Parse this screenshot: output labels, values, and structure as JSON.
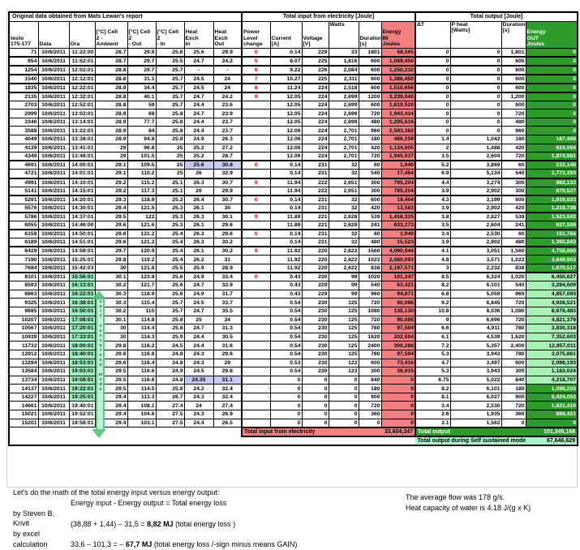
{
  "colors": {
    "input_red": "#f28080",
    "output_green": "#2d9c2d",
    "light_green": "#a9f0b4",
    "ora_green": "#9df2c0",
    "ss_band_green": "#abf3cb",
    "blue_highlight": "#c7cbf2",
    "power_red": "#e60000",
    "arrow_green": "#58c17e",
    "arrow_fill": "#bdf2d2",
    "arrow_text": "#0d6b30"
  },
  "table": {
    "section_headers": {
      "original": "Original data obtained from Mats Lewan's report",
      "input": "Total input from electricity  [Joule]",
      "output": "Total output  [Joule]"
    },
    "columns": [
      "testo\n175-177",
      "Data",
      "Ora",
      "[°C] Cell\n2 -\nAmbient",
      "[°C] Cell 2\n- Out",
      "[°C] Cell\n2\n- In",
      "Heat\nExch\nIn",
      "Heat\nExch\nOut",
      "Power\nLevel\nchange",
      "Current\n[A]",
      "Voltage\n[V]",
      "Watts",
      "Duration\n[s]",
      "Energy\nIN\nJoules",
      "ΔT",
      "P heat\n[Watts]",
      "Duration\n[s]",
      "Energy\nOUT\nJoules"
    ],
    "rows": [
      [
        "71",
        "10/6/2011",
        "11:22:00",
        "28.7",
        "29.9",
        "25.6",
        "25.6",
        "29.9",
        "0",
        "0.14",
        "229",
        "33",
        "1801",
        "58,565",
        "0",
        "0",
        "1,801",
        "0"
      ],
      [
        "954",
        "10/6/2011",
        "11:52:01",
        "28.7",
        "29.7",
        "25.5",
        "24.7",
        "24.2",
        "5",
        "8.07",
        "225",
        "1,816",
        "600",
        "1,089,450",
        "0",
        "0",
        "600",
        "0"
      ],
      [
        "1254",
        "10/6/2011",
        "12:02:01",
        "28.8",
        "29.7",
        "25.7",
        "-",
        "-",
        "6",
        "9.22",
        "226",
        "2,084",
        "600",
        "1,250,232",
        "0",
        "0",
        "600",
        "0"
      ],
      [
        "1540",
        "10/6/2011",
        "12:12:01",
        "28.8",
        "31.1",
        "25.7",
        "24.5",
        "24",
        "7",
        "10.27",
        "225",
        "2,311",
        "600",
        "1,386,450",
        "0",
        "0",
        "600",
        "0"
      ],
      [
        "1835",
        "10/6/2011",
        "12:22:01",
        "28.9",
        "34.4",
        "25.7",
        "24.5",
        "24",
        "8",
        "11.24",
        "224",
        "2,518",
        "600",
        "1,510,656",
        "0",
        "0",
        "600",
        "0"
      ],
      [
        "2135",
        "10/6/2011",
        "12:32:01",
        "28.8",
        "40.1",
        "25.7",
        "24.7",
        "24.2",
        "9",
        "12.05",
        "224",
        "2,699",
        "1200",
        "3,239,040",
        "0",
        "0",
        "1,200",
        "0"
      ],
      [
        "2703",
        "10/6/2011",
        "12:52:01",
        "28.8",
        "59",
        "25.7",
        "24.4",
        "23.6",
        "",
        "12.05",
        "224",
        "2,699",
        "600",
        "1,619,520",
        "0",
        "0",
        "600",
        "0"
      ],
      [
        "2999",
        "10/6/2011",
        "13:02:01",
        "28.9",
        "68",
        "25.8",
        "24.7",
        "23.9",
        "",
        "12.05",
        "224",
        "2,699",
        "720",
        "1,943,424",
        "0",
        "0",
        "720",
        "0"
      ],
      [
        "3346",
        "10/6/2011",
        "13:14:01",
        "28.9",
        "77.7",
        "25.8",
        "24.4",
        "23.7",
        "",
        "12.05",
        "224",
        "2,699",
        "480",
        "1,295,616",
        "0",
        "0",
        "480",
        "0"
      ],
      [
        "3588",
        "10/6/2011",
        "13:22:01",
        "28.9",
        "84",
        "25.8",
        "24.4",
        "23.7",
        "",
        "12.06",
        "224",
        "2,701",
        "960",
        "2,593,382",
        "0",
        "0",
        "960",
        "0"
      ],
      [
        "4049",
        "10/6/2011",
        "13:38:01",
        "28.9",
        "94.8",
        "25.8",
        "24.9",
        "26.3",
        "",
        "12.06",
        "224",
        "2,701",
        "180",
        "486,259",
        "1.4",
        "1,042",
        "180",
        "187,498"
      ],
      [
        "4139",
        "10/6/2011",
        "13:41:01",
        "29",
        "96.8",
        "25",
        "25.2",
        "27.2",
        "",
        "12.06",
        "224",
        "2,701",
        "420",
        "1,134,605",
        "2",
        "1,488",
        "420",
        "624,994"
      ],
      [
        "4349",
        "10/6/2011",
        "13:48:01",
        "29",
        "101.5",
        "25",
        "25.2",
        "28.7",
        "",
        "12.06",
        "224",
        "2,701",
        "720",
        "1,945,037",
        "3.5",
        "2,604",
        "720",
        "1,874,981"
      ],
      [
        "4691",
        "10/6/2011",
        "14:00:01",
        "29.1",
        "109.5",
        "25",
        "25.6",
        "30.8",
        "0",
        "0.14",
        "231",
        "32",
        "60",
        "1,940",
        "5.2",
        "3,869",
        "60",
        "232,140"
      ],
      [
        "4721",
        "10/6/2011",
        "14:01:01",
        "29.1",
        "110.2",
        "25",
        "26",
        "32.9",
        "",
        "0.14",
        "231",
        "32",
        "540",
        "17,464",
        "6.9",
        "5,134",
        "540",
        "2,772,293"
      ],
      [
        "4991",
        "10/6/2011",
        "14:10:01",
        "29.2",
        "115.2",
        "25.1",
        "26.3",
        "30.7",
        "9",
        "11.94",
        "222",
        "2,651",
        "300",
        "795,204",
        "4.4",
        "3,274",
        "300",
        "982,133"
      ],
      [
        "5141",
        "10/6/2011",
        "14:15:01",
        "29.2",
        "117.3",
        "25.1",
        "26",
        "29.9",
        "",
        "11.94",
        "222",
        "2,651",
        "300",
        "795,204",
        "3.9",
        "2,902",
        "300",
        "870,527"
      ],
      [
        "5291",
        "10/6/2011",
        "14:20:01",
        "29.3",
        "118.9",
        "25.2",
        "26.4",
        "30.7",
        "0",
        "0.14",
        "231",
        "32",
        "600",
        "19,404",
        "4.3",
        "3,199",
        "600",
        "1,919,623"
      ],
      [
        "5576",
        "10/6/2011",
        "14:30:01",
        "29.4",
        "121.5",
        "25.3",
        "26.1",
        "30",
        "",
        "0.14",
        "231",
        "32",
        "420",
        "13,583",
        "3.9",
        "2,902",
        "420",
        "1,218,738"
      ],
      [
        "5786",
        "10/6/2011",
        "14:37:01",
        "29.5",
        "122",
        "25.3",
        "26.3",
        "30.1",
        "9",
        "11.89",
        "221",
        "2,628",
        "539",
        "1,416,325",
        "3.8",
        "2,827",
        "539",
        "1,523,943"
      ],
      [
        "6055",
        "10/6/2011",
        "14:46:00",
        "29.6",
        "121.6",
        "25.3",
        "26.1",
        "29.6",
        "",
        "11.89",
        "221",
        "2,628",
        "241",
        "633,273",
        "3.5",
        "2,604",
        "241",
        "627,598"
      ],
      [
        "6159",
        "10/6/2011",
        "14:50:01",
        "29.6",
        "121.2",
        "25.4",
        "26.2",
        "29.6",
        "0",
        "0.14",
        "231",
        "32",
        "60",
        "1,940",
        "3.4",
        "2,530",
        "60",
        "151,784"
      ],
      [
        "6189",
        "10/6/2011",
        "14:51:01",
        "29.6",
        "121.2",
        "25.4",
        "26.3",
        "30.2",
        "",
        "0.14",
        "231",
        "32",
        "480",
        "15,523",
        "3.9",
        "2,902",
        "480",
        "1,392,843"
      ],
      [
        "6429",
        "10/6/2011",
        "14:59:01",
        "29.7",
        "120.9",
        "25.4",
        "26.1",
        "30.2",
        "9",
        "11.92",
        "220",
        "2,622",
        "1560",
        "4,090,944",
        "4.1",
        "3,051",
        "1,560",
        "4,758,880"
      ],
      [
        "7190",
        "10/6/2011",
        "15:25:01",
        "29.8",
        "119.2",
        "25.4",
        "26.2",
        "31",
        "",
        "11.92",
        "220",
        "2,622",
        "1022",
        "2,680,093",
        "4.8",
        "3,571",
        "1,022",
        "3,649,963"
      ],
      [
        "7684",
        "10/6/2011",
        "15:42:03",
        "30",
        "121.8",
        "25.5",
        "25.9",
        "28.9",
        "",
        "11.92",
        "220",
        "2,622",
        "838",
        "2,197,571",
        "3",
        "2,232",
        "838",
        "1,870,517"
      ],
      [
        "8101",
        "10/6/2011",
        "15:56:01",
        "30.1",
        "123.8",
        "25.6",
        "24.9",
        "33.4",
        "0",
        "0.43",
        "230",
        "99",
        "1020",
        "101,347",
        "8.5",
        "6,324",
        "1,020",
        "6,450,827"
      ],
      [
        "8593",
        "10/6/2011",
        "16:13:01",
        "30.2",
        "121.7",
        "25.6",
        "24.7",
        "32.9",
        "",
        "0.43",
        "229",
        "99",
        "540",
        "53,421",
        "8.2",
        "6,101",
        "540",
        "3,294,609"
      ],
      [
        "8863",
        "10/6/2011",
        "16:22:01",
        "30.3",
        "118.9",
        "25.6",
        "24.9",
        "31.7",
        "",
        "0.43",
        "229",
        "99",
        "960",
        "94,971",
        "6.8",
        "5,059",
        "960",
        "4,857,093"
      ],
      [
        "9325",
        "10/6/2011",
        "16:38:01",
        "30.3",
        "115.4",
        "25.7",
        "24.5",
        "33.7",
        "",
        "0.54",
        "230",
        "125",
        "720",
        "90,086",
        "9.2",
        "6,845",
        "720",
        "4,928,521"
      ],
      [
        "9685",
        "10/6/2011",
        "16:50:01",
        "30.2",
        "115",
        "25.7",
        "24.7",
        "35.5",
        "",
        "0.54",
        "230",
        "125",
        "1080",
        "135,130",
        "10.8",
        "8,036",
        "1,080",
        "8,678,483"
      ],
      [
        "10207",
        "10/6/2011",
        "17:08:01",
        "30.1",
        "114.8",
        "25.8",
        "25",
        "34",
        "",
        "0.54",
        "230",
        "125",
        "720",
        "90,086",
        "9",
        "6,696",
        "720",
        "4,821,379"
      ],
      [
        "10567",
        "10/6/2011",
        "17:20:01",
        "30",
        "114.4",
        "25.8",
        "24.7",
        "31.3",
        "",
        "0.54",
        "230",
        "125",
        "780",
        "97,594",
        "6.6",
        "4,911",
        "780",
        "3,830,318"
      ],
      [
        "10939",
        "10/6/2011",
        "17:33:01",
        "30",
        "114.3",
        "25.9",
        "24.4",
        "30.5",
        "",
        "0.54",
        "230",
        "125",
        "1620",
        "202,694",
        "6.1",
        "4,539",
        "1,620",
        "7,352,603"
      ],
      [
        "11732",
        "10/6/2011",
        "18:00:01",
        "29.8",
        "116.2",
        "24.5",
        "24.4",
        "31.6",
        "",
        "0.54",
        "230",
        "125",
        "2400",
        "300,288",
        "7.2",
        "5,357",
        "2,400",
        "12,857,011"
      ],
      [
        "12912",
        "10/6/2011",
        "18:40:01",
        "29.6",
        "116.8",
        "24.8",
        "24.3",
        "29.6",
        "",
        "0.54",
        "230",
        "125",
        "780",
        "97,594",
        "5.3",
        "3,943",
        "780",
        "3,075,861"
      ],
      [
        "13284",
        "10/6/2011",
        "18:53:01",
        "29.6",
        "116.4",
        "24.8",
        "24.3",
        "29",
        "",
        "0.53",
        "230",
        "122",
        "600",
        "73,416",
        "4.7",
        "3,497",
        "600",
        "2,098,193"
      ],
      [
        "13584",
        "10/6/2011",
        "19:03:01",
        "29.5",
        "116.6",
        "24.9",
        "24.5",
        "29.8",
        "",
        "0.54",
        "230",
        "123",
        "300",
        "36,915",
        "5.3",
        "3,943",
        "300",
        "1,183,024"
      ],
      [
        "13734",
        "10/6/2011",
        "19:08:01",
        "29.5",
        "116.6",
        "24.8",
        "24.35",
        "31.1",
        "",
        "0",
        "0",
        "0",
        "840",
        "0",
        "6.75",
        "5,022",
        "840",
        "4,218,707"
      ],
      [
        "14137",
        "10/6/2011",
        "19:22:01",
        "29.5",
        "114.5",
        "25.8",
        "24.2",
        "32.4",
        "",
        "0",
        "0",
        "0",
        "180",
        "0",
        "8.2",
        "6,101",
        "180",
        "1,098,203"
      ],
      [
        "14227",
        "10/6/2011",
        "19:25:01",
        "29.4",
        "113.3",
        "26.7",
        "24.3",
        "32.4",
        "",
        "0",
        "0",
        "0",
        "900",
        "0",
        "8.1",
        "6,027",
        "900",
        "5,424,052"
      ],
      [
        "14661",
        "10/6/2011",
        "19:40:01",
        "29.4",
        "108.1",
        "27.4",
        "24",
        "27.4",
        "",
        "0",
        "0",
        "0",
        "720",
        "0",
        "3.4",
        "2,530",
        "720",
        "1,821,410"
      ],
      [
        "15021",
        "10/6/2011",
        "19:52:01",
        "29.4",
        "104.6",
        "27.5",
        "24.3",
        "26.9",
        "",
        "0",
        "0",
        "0",
        "360",
        "0",
        "2.6",
        "1,935",
        "360",
        "696,421"
      ],
      [
        "15201",
        "10/6/2011",
        "19:58:01",
        "29.4",
        "103.1",
        "27.5",
        "24.4",
        "26.5",
        "",
        "0",
        "0",
        "0",
        "0",
        "0",
        "2.1",
        "1,562",
        "0",
        "0"
      ]
    ],
    "highlight": {
      "ora_green_rows": [
        27,
        28,
        29,
        30,
        31,
        32,
        33,
        34,
        35,
        36,
        37,
        38,
        39,
        40,
        41
      ],
      "hx_blue_rows": [
        14,
        39
      ],
      "eout_light_rows": [
        27,
        28,
        29,
        30,
        31,
        32,
        33,
        34,
        35,
        36,
        37,
        38,
        39
      ],
      "group_start_rows": [
        2,
        3,
        4,
        5,
        6,
        14,
        16,
        18,
        20,
        22,
        24,
        27
      ]
    },
    "totals": {
      "input_label": "Total input from electricity",
      "input_value": "33,604,247",
      "output_label": "Total output",
      "output_value": "101,345,168",
      "ss_label": "Total output during Self sustained mode",
      "ss_value": "67,646,629"
    }
  },
  "annotation": {
    "vertical_text": "self sustained mode"
  },
  "notes": {
    "math_intro": "Let's do the math of the total energy input versus energy output:",
    "formula": "Energy input - Energy output = Total energy loss",
    "krivit_label": "by Steven B. Krivit",
    "krivit_calc": "(38,88 + 1,44) – 31,5 = ",
    "krivit_bold": "8,82  MJ",
    "krivit_tail": "   (total energy loss )",
    "excel_label": "by excel calculation",
    "excel_calc": "33,6 – 101,3 = – ",
    "excel_bold": "67,7 MJ",
    "excel_tail": " (total energy loss /-sign minus means GAIN)",
    "flow_note": "The average flow was 178 g/s.",
    "heat_note": "Heat capacity of water is 4.18 J/(g x K)"
  }
}
